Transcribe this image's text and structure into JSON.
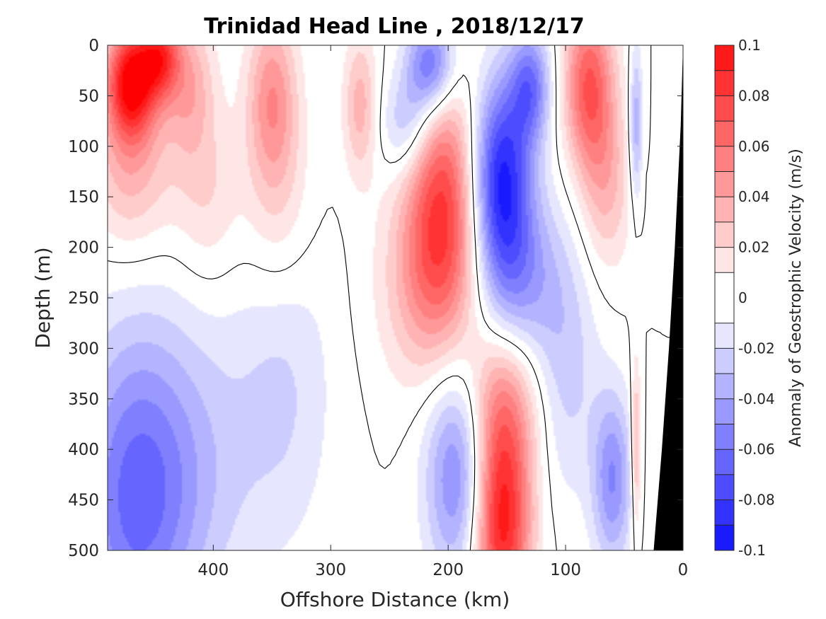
{
  "chart_data": {
    "type": "heatmap",
    "title": "Trinidad Head Line , 2018/12/17",
    "xlabel": "Offshore Distance (km)",
    "ylabel": "Depth (m)",
    "colorbar_label": "Anomaly of Geostrophic Velocity (m/s)",
    "xlim": [
      490,
      0
    ],
    "ylim": [
      0,
      500
    ],
    "x_reversed": true,
    "y_reversed": true,
    "xticks": [
      400,
      300,
      200,
      100,
      0
    ],
    "yticks": [
      0,
      50,
      100,
      150,
      200,
      250,
      300,
      350,
      400,
      450,
      500
    ],
    "clim": [
      -0.1,
      0.1
    ],
    "colorbar_ticks": [
      "0.1",
      "0.08",
      "0.06",
      "0.04",
      "0.02",
      "0",
      "-0.02",
      "-0.04",
      "-0.06",
      "-0.08",
      "-0.1"
    ],
    "colorbar_levels": [
      -0.1,
      -0.09,
      -0.08,
      -0.07,
      -0.06,
      -0.05,
      -0.04,
      -0.03,
      -0.02,
      -0.01,
      0.01,
      0.02,
      0.03,
      0.04,
      0.05,
      0.06,
      0.07,
      0.08,
      0.09,
      0.1
    ],
    "colorbar_colors": [
      "#0000ff",
      "#1a1aff",
      "#3333ff",
      "#4d4dff",
      "#6666ff",
      "#8080ff",
      "#9999ff",
      "#b3b3ff",
      "#ccccff",
      "#e6e6ff",
      "#ffffff",
      "#ffe6e6",
      "#ffcccc",
      "#ffb3b3",
      "#ff9999",
      "#ff8080",
      "#ff6666",
      "#ff4d4d",
      "#ff3333",
      "#ff1a1a",
      "#ff0000"
    ],
    "bathymetry": [
      [
        25,
        500
      ],
      [
        18,
        400
      ],
      [
        12,
        300
      ],
      [
        7,
        200
      ],
      [
        2,
        80
      ],
      [
        0,
        0
      ]
    ],
    "features": [
      {
        "x": 470,
        "depth": 35,
        "value": 0.1,
        "sx": 15,
        "sy": 40
      },
      {
        "x": 445,
        "depth": 10,
        "value": 0.07,
        "sx": 12,
        "sy": 30
      },
      {
        "x": 470,
        "depth": 120,
        "value": 0.035,
        "sx": 25,
        "sy": 60
      },
      {
        "x": 420,
        "depth": 40,
        "value": 0.035,
        "sx": 15,
        "sy": 50
      },
      {
        "x": 405,
        "depth": 150,
        "value": 0.02,
        "sx": 20,
        "sy": 60
      },
      {
        "x": 350,
        "depth": 50,
        "value": 0.045,
        "sx": 15,
        "sy": 60
      },
      {
        "x": 345,
        "depth": 150,
        "value": 0.02,
        "sx": 20,
        "sy": 70
      },
      {
        "x": 275,
        "depth": 60,
        "value": 0.035,
        "sx": 10,
        "sy": 50
      },
      {
        "x": 205,
        "depth": 150,
        "value": 0.07,
        "sx": 22,
        "sy": 85
      },
      {
        "x": 215,
        "depth": 240,
        "value": 0.035,
        "sx": 30,
        "sy": 70
      },
      {
        "x": 155,
        "depth": 470,
        "value": 0.1,
        "sx": 18,
        "sy": 80
      },
      {
        "x": 155,
        "depth": 350,
        "value": 0.035,
        "sx": 25,
        "sy": 55
      },
      {
        "x": 80,
        "depth": 40,
        "value": 0.07,
        "sx": 15,
        "sy": 60
      },
      {
        "x": 65,
        "depth": 140,
        "value": 0.03,
        "sx": 15,
        "sy": 60
      },
      {
        "x": 40,
        "depth": 400,
        "value": 0.04,
        "sx": 3,
        "sy": 60
      },
      {
        "x": 215,
        "depth": 20,
        "value": -0.07,
        "sx": 15,
        "sy": 35
      },
      {
        "x": 235,
        "depth": 80,
        "value": -0.035,
        "sx": 15,
        "sy": 35
      },
      {
        "x": 155,
        "depth": 130,
        "value": -0.09,
        "sx": 18,
        "sy": 70
      },
      {
        "x": 140,
        "depth": 230,
        "value": -0.04,
        "sx": 25,
        "sy": 60
      },
      {
        "x": 130,
        "depth": 40,
        "value": -0.055,
        "sx": 12,
        "sy": 40
      },
      {
        "x": 190,
        "depth": 420,
        "value": -0.06,
        "sx": 20,
        "sy": 80
      },
      {
        "x": 470,
        "depth": 450,
        "value": -0.055,
        "sx": 35,
        "sy": 120
      },
      {
        "x": 420,
        "depth": 420,
        "value": -0.025,
        "sx": 40,
        "sy": 110
      },
      {
        "x": 340,
        "depth": 340,
        "value": -0.02,
        "sx": 30,
        "sy": 110
      },
      {
        "x": 100,
        "depth": 320,
        "value": -0.025,
        "sx": 20,
        "sy": 90
      },
      {
        "x": 60,
        "depth": 430,
        "value": -0.05,
        "sx": 12,
        "sy": 60
      },
      {
        "x": 40,
        "depth": 80,
        "value": -0.04,
        "sx": 4,
        "sy": 55
      }
    ]
  }
}
